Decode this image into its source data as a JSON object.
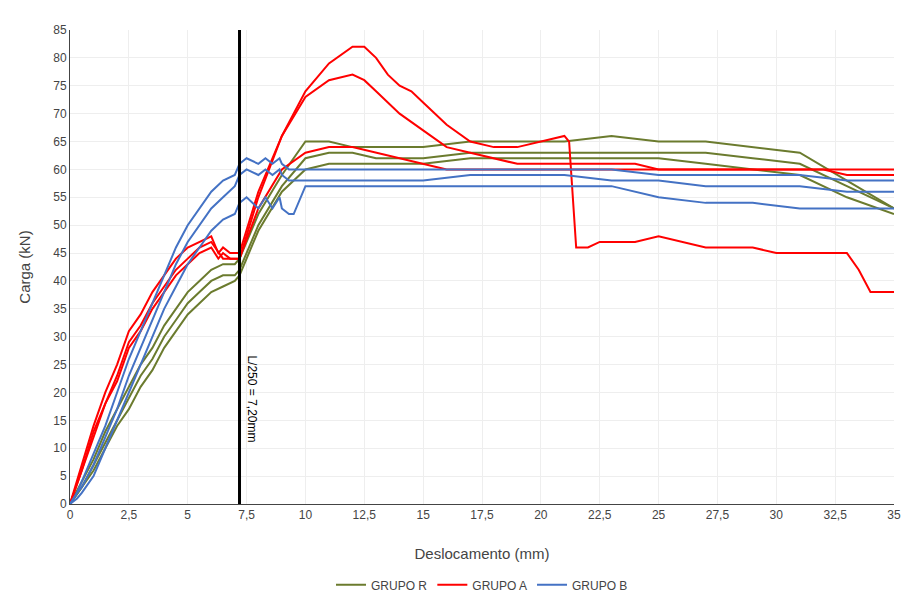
{
  "chart_data": {
    "type": "line",
    "xlabel": "Deslocamento (mm)",
    "ylabel": "Carga (kN)",
    "xlim": [
      0,
      35
    ],
    "ylim": [
      0,
      85
    ],
    "xticks": [
      0,
      {
        "value": 2.5,
        "label": "2,5"
      },
      5,
      {
        "value": 7.5,
        "label": "7,5"
      },
      10,
      {
        "value": 12.5,
        "label": "12,5"
      },
      15,
      {
        "value": 17.5,
        "label": "17,5"
      },
      20,
      {
        "value": 22.5,
        "label": "22,5"
      },
      25,
      {
        "value": 27.5,
        "label": "27,5"
      },
      30,
      {
        "value": 32.5,
        "label": "32,5"
      },
      35
    ],
    "yticks": [
      0,
      5,
      10,
      15,
      20,
      25,
      30,
      35,
      40,
      45,
      50,
      55,
      60,
      65,
      70,
      75,
      80,
      85
    ],
    "grid": true,
    "legend": "bottom",
    "annotations": [
      {
        "type": "vline",
        "x": 7.2,
        "y": 27,
        "text": "L/250 = 7,20mm",
        "color": "#000000"
      }
    ],
    "series": [
      {
        "name": "GRUPO R",
        "color": "#6b7b2e",
        "x": [
          0,
          0.5,
          1,
          1.5,
          2,
          2.5,
          3,
          3.5,
          4,
          4.5,
          5,
          5.5,
          6,
          6.5,
          7,
          7.2,
          8,
          9,
          10,
          11,
          12,
          13,
          14,
          15,
          17,
          19,
          21,
          23,
          25,
          27,
          29,
          31,
          33,
          35
        ],
        "values": [
          0,
          4,
          8,
          13,
          17,
          21,
          25,
          28,
          32,
          35,
          38,
          40,
          42,
          43,
          43,
          44,
          52,
          59,
          65,
          65,
          64,
          64,
          64,
          64,
          65,
          65,
          65,
          66,
          65,
          65,
          64,
          63,
          58,
          53
        ]
      },
      {
        "name": "GRUPO R",
        "color": "#6b7b2e",
        "x": [
          0,
          0.5,
          1,
          1.5,
          2,
          2.5,
          3,
          3.5,
          4,
          4.5,
          5,
          5.5,
          6,
          6.5,
          7,
          7.2,
          8,
          9,
          10,
          11,
          12,
          13,
          14,
          15,
          17,
          19,
          21,
          23,
          25,
          27,
          29,
          31,
          33,
          35
        ],
        "values": [
          0,
          3,
          7,
          11,
          15,
          19,
          23,
          26,
          30,
          33,
          36,
          38,
          40,
          41,
          41,
          42,
          50,
          57,
          62,
          63,
          63,
          62,
          62,
          62,
          63,
          63,
          63,
          63,
          63,
          63,
          62,
          61,
          57,
          53
        ]
      },
      {
        "name": "GRUPO R",
        "color": "#6b7b2e",
        "x": [
          0,
          0.5,
          1,
          1.5,
          2,
          2.5,
          3,
          3.5,
          4,
          4.5,
          5,
          5.5,
          6,
          6.5,
          7,
          7.2,
          8,
          9,
          10,
          11,
          12,
          13,
          14,
          15,
          17,
          19,
          21,
          23,
          25,
          27,
          29,
          31,
          33,
          35
        ],
        "values": [
          0,
          3,
          6,
          10,
          14,
          17,
          21,
          24,
          28,
          31,
          34,
          36,
          38,
          39,
          40,
          41,
          49,
          56,
          60,
          61,
          61,
          61,
          61,
          61,
          62,
          62,
          62,
          62,
          62,
          61,
          60,
          59,
          55,
          52
        ]
      },
      {
        "name": "GRUPO A",
        "color": "#ff0000",
        "x": [
          0,
          0.5,
          1,
          1.5,
          2,
          2.5,
          3,
          3.5,
          4,
          4.5,
          5,
          5.5,
          6,
          6.3,
          6.5,
          6.8,
          7,
          7.2,
          8,
          9,
          10,
          11,
          12,
          12.5,
          13,
          13.5,
          14,
          14.5,
          15,
          16,
          17,
          18,
          19,
          20,
          21,
          21.2,
          21.5,
          22,
          22.5,
          23,
          24,
          25,
          26,
          27,
          28,
          29,
          30,
          31,
          32,
          33,
          33.5,
          34,
          34.5,
          35
        ],
        "values": [
          0,
          6,
          12,
          18,
          22,
          28,
          31,
          35,
          38,
          41,
          43,
          45,
          46,
          44,
          45,
          44,
          44,
          44,
          55,
          66,
          74,
          79,
          82,
          82,
          80,
          77,
          75,
          74,
          72,
          68,
          65,
          64,
          64,
          65,
          66,
          65,
          46,
          46,
          47,
          47,
          47,
          48,
          47,
          46,
          46,
          46,
          45,
          45,
          45,
          45,
          42,
          38,
          38,
          38
        ]
      },
      {
        "name": "GRUPO A",
        "color": "#ff0000",
        "x": [
          0,
          0.5,
          1,
          1.5,
          2,
          2.5,
          3,
          3.5,
          4,
          4.5,
          5,
          5.5,
          6,
          6.3,
          6.5,
          6.8,
          7,
          7.2,
          8,
          9,
          10,
          11,
          12,
          12.5,
          13,
          14,
          15,
          16,
          17,
          18,
          19,
          20,
          21,
          22,
          23,
          24,
          25,
          26,
          27,
          28,
          29,
          30,
          31,
          32,
          33,
          34,
          35
        ],
        "values": [
          0,
          7,
          14,
          20,
          25,
          31,
          34,
          38,
          41,
          44,
          46,
          47,
          48,
          45,
          46,
          45,
          45,
          45,
          56,
          66,
          73,
          76,
          77,
          76,
          74,
          70,
          67,
          64,
          63,
          62,
          61,
          61,
          61,
          61,
          61,
          61,
          60,
          60,
          60,
          60,
          60,
          60,
          60,
          60,
          59,
          59,
          59
        ]
      },
      {
        "name": "GRUPO A",
        "color": "#ff0000",
        "x": [
          0,
          0.5,
          1,
          1.5,
          2,
          2.5,
          3,
          3.5,
          4,
          4.5,
          5,
          5.5,
          6,
          6.5,
          7,
          7.2,
          8,
          9,
          10,
          11,
          12,
          13,
          14,
          15,
          16,
          17,
          18,
          19,
          20,
          21,
          22,
          23,
          24,
          25,
          26,
          27,
          28,
          29,
          30,
          31,
          32,
          33,
          34,
          35
        ],
        "values": [
          0,
          6,
          13,
          18,
          23,
          29,
          32,
          36,
          39,
          42,
          44,
          46,
          47,
          44,
          44,
          44,
          53,
          60,
          63,
          64,
          64,
          63,
          62,
          61,
          60,
          60,
          60,
          60,
          60,
          60,
          60,
          60,
          60,
          60,
          60,
          60,
          60,
          60,
          60,
          60,
          60,
          60,
          60,
          60
        ]
      },
      {
        "name": "GRUPO B",
        "color": "#4472c4",
        "x": [
          0,
          0.3,
          0.5,
          1,
          1.5,
          2,
          2.5,
          3,
          3.5,
          4,
          4.5,
          5,
          5.5,
          6,
          6.5,
          7,
          7.2,
          7.5,
          8,
          8.3,
          8.6,
          8.9,
          9,
          9.3,
          9.5,
          10,
          11,
          12,
          13,
          14,
          15,
          17,
          19,
          21,
          23,
          25,
          27,
          29,
          31,
          33,
          35
        ],
        "values": [
          0,
          2,
          4,
          9,
          14,
          20,
          26,
          31,
          36,
          41,
          46,
          50,
          53,
          56,
          58,
          59,
          61,
          62,
          61,
          62,
          61,
          62,
          61,
          60,
          60,
          60,
          60,
          60,
          60,
          60,
          60,
          60,
          60,
          60,
          60,
          59,
          59,
          59,
          59,
          58,
          58
        ]
      },
      {
        "name": "GRUPO B",
        "color": "#4472c4",
        "x": [
          0,
          0.3,
          0.5,
          1,
          1.5,
          2,
          2.5,
          3,
          3.5,
          4,
          4.5,
          5,
          5.5,
          6,
          6.5,
          7,
          7.2,
          7.5,
          8,
          8.3,
          8.6,
          8.9,
          9,
          9.3,
          9.5,
          10,
          11,
          12,
          13,
          14,
          15,
          17,
          19,
          21,
          23,
          25,
          27,
          29,
          31,
          33,
          35
        ],
        "values": [
          0,
          2,
          3,
          7,
          12,
          17,
          23,
          28,
          33,
          38,
          43,
          47,
          50,
          53,
          55,
          57,
          59,
          60,
          59,
          60,
          59,
          60,
          59,
          58,
          58,
          58,
          58,
          58,
          58,
          58,
          58,
          59,
          59,
          59,
          58,
          58,
          57,
          57,
          57,
          56,
          56
        ]
      },
      {
        "name": "GRUPO B",
        "color": "#4472c4",
        "x": [
          0,
          0.3,
          0.5,
          1,
          1.5,
          2,
          2.5,
          3,
          3.5,
          4,
          4.5,
          5,
          5.5,
          6,
          6.5,
          7,
          7.2,
          7.5,
          8,
          8.3,
          8.6,
          8.9,
          9,
          9.3,
          9.5,
          10,
          11,
          12,
          13,
          14,
          15,
          17,
          19,
          21,
          23,
          25,
          27,
          29,
          31,
          33,
          35
        ],
        "values": [
          0,
          1,
          2,
          5,
          10,
          15,
          20,
          25,
          30,
          35,
          39,
          43,
          46,
          49,
          51,
          52,
          54,
          55,
          53,
          55,
          53,
          55,
          53,
          52,
          52,
          57,
          57,
          57,
          57,
          57,
          57,
          57,
          57,
          57,
          57,
          55,
          54,
          54,
          53,
          53,
          53
        ]
      }
    ]
  }
}
